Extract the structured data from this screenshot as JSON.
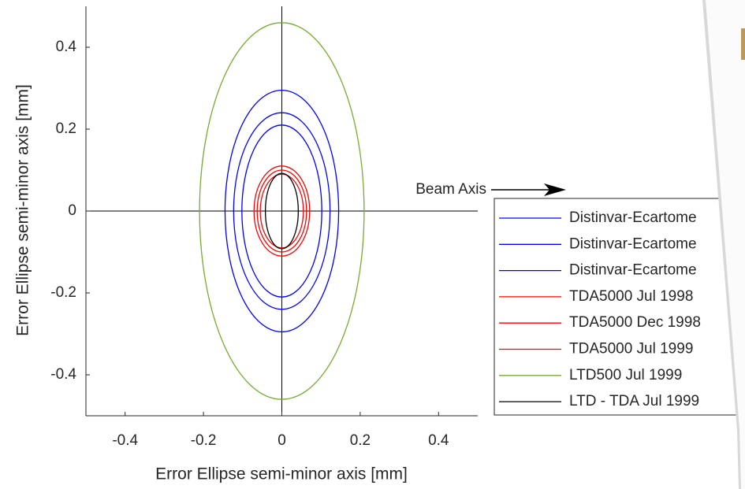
{
  "chart_data": {
    "type": "ellipse",
    "xlabel": "Error Ellipse semi-minor axis [mm]",
    "ylabel": "Error Ellipse semi-minor axis [mm]",
    "annotation": "Beam Axis",
    "xlim": [
      -0.5,
      0.5
    ],
    "ylim": [
      -0.5,
      0.5
    ],
    "xticks": [
      -0.4,
      -0.2,
      0,
      0.2,
      0.4
    ],
    "yticks": [
      -0.4,
      -0.2,
      0,
      0.2,
      0.4
    ],
    "series": [
      {
        "name": "Distinvar-Ecartome",
        "color": "#0000ff",
        "rx": 0.145,
        "ry": 0.295
      },
      {
        "name": "Distinvar-Ecartome",
        "color": "#0000ff",
        "rx": 0.123,
        "ry": 0.24
      },
      {
        "name": "Distinvar-Ecartome",
        "color": "#0000ff",
        "rx": 0.102,
        "ry": 0.21
      },
      {
        "name": "TDA5000 Jul 1998",
        "color": "#ff0000",
        "rx": 0.071,
        "ry": 0.11
      },
      {
        "name": "TDA5000 Dec 1998",
        "color": "#ff0000",
        "rx": 0.063,
        "ry": 0.1
      },
      {
        "name": "TDA5000 Jul 1999",
        "color": "#ff0000",
        "rx": 0.055,
        "ry": 0.09
      },
      {
        "name": "LTD500 Jul 1999",
        "color": "#77ac30",
        "rx": 0.21,
        "ry": 0.46
      },
      {
        "name": "LTD - TDA Jul 1999",
        "color": "#000000",
        "rx": 0.042,
        "ry": 0.092
      }
    ]
  }
}
